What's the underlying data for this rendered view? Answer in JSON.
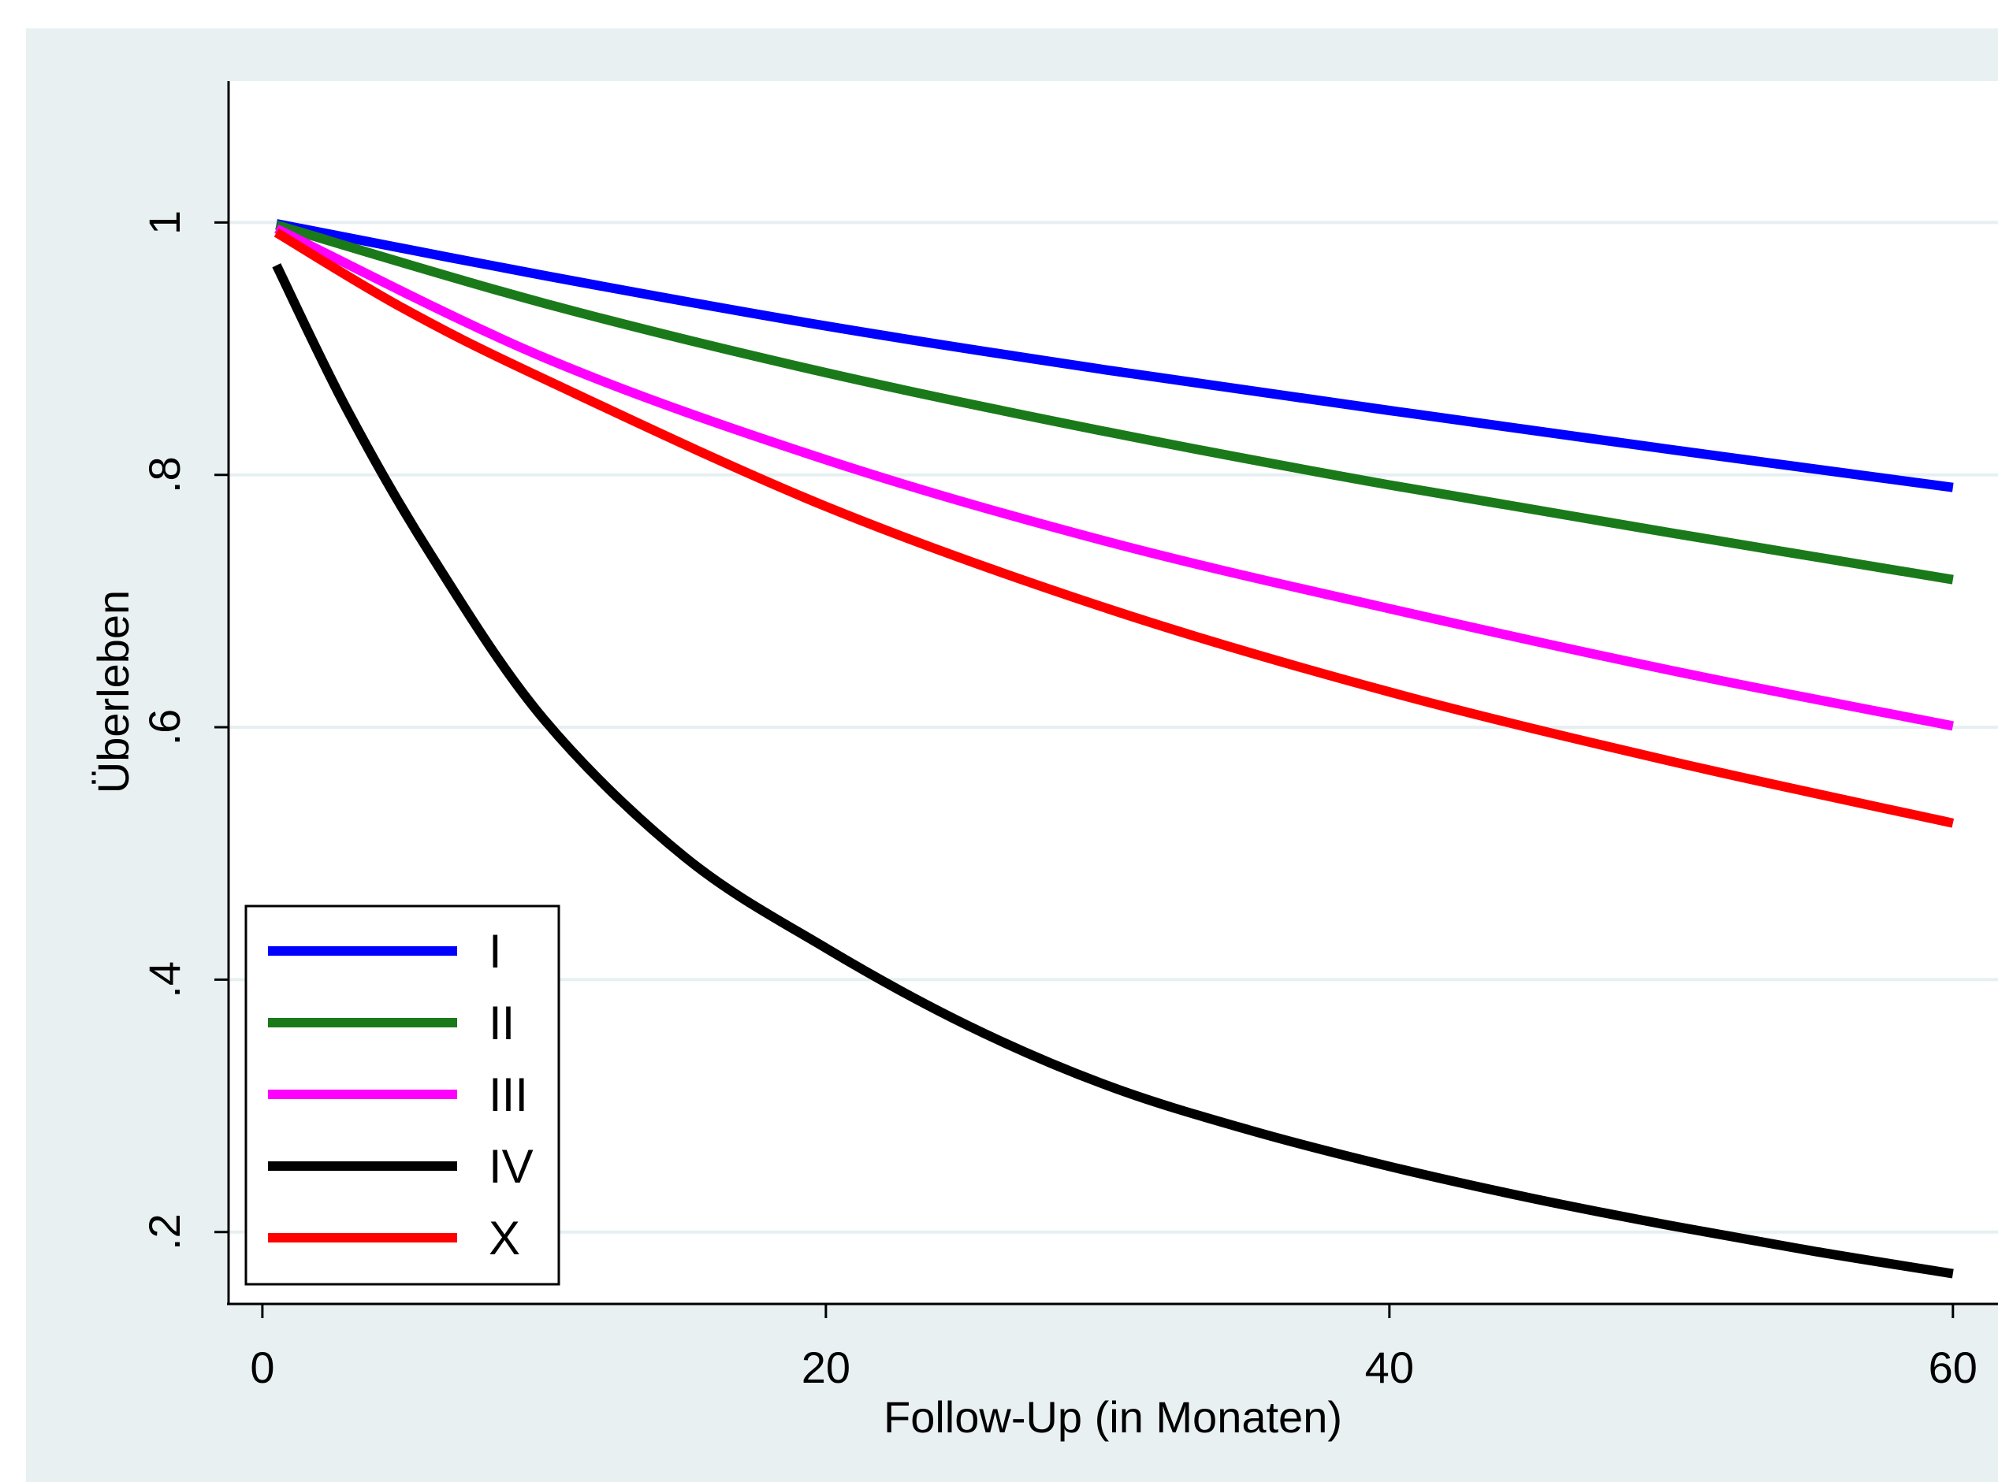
{
  "chart_data": {
    "type": "line",
    "title": "",
    "xlabel": "Follow-Up (in Monaten)",
    "ylabel": "Überleben",
    "xlim": [
      -1.2,
      61.6
    ],
    "ylim": [
      0.143,
      1.112
    ],
    "x_ticks": [
      {
        "value": 0,
        "label": "0"
      },
      {
        "value": 20,
        "label": "20"
      },
      {
        "value": 40,
        "label": "40"
      },
      {
        "value": 60,
        "label": "60"
      }
    ],
    "y_ticks": [
      {
        "value": 0.2,
        "label": ".2"
      },
      {
        "value": 0.4,
        "label": ".4"
      },
      {
        "value": 0.6,
        "label": ".6"
      },
      {
        "value": 0.8,
        "label": ".8"
      },
      {
        "value": 1.0,
        "label": "1"
      }
    ],
    "grid": true,
    "legend_position": "bottom-left",
    "series": [
      {
        "name": "I",
        "color": "#0000ff",
        "points": [
          [
            0.5,
            0.999
          ],
          [
            10,
            0.958
          ],
          [
            20,
            0.918
          ],
          [
            30,
            0.883
          ],
          [
            40,
            0.851
          ],
          [
            50,
            0.82
          ],
          [
            60,
            0.79
          ]
        ]
      },
      {
        "name": "II",
        "color": "#1a7a1a",
        "points": [
          [
            0.5,
            0.998
          ],
          [
            10,
            0.936
          ],
          [
            20,
            0.881
          ],
          [
            30,
            0.834
          ],
          [
            40,
            0.792
          ],
          [
            50,
            0.754
          ],
          [
            60,
            0.717
          ]
        ]
      },
      {
        "name": "III",
        "color": "#ff00ff",
        "points": [
          [
            0.5,
            0.995
          ],
          [
            10,
            0.893
          ],
          [
            20,
            0.812
          ],
          [
            30,
            0.747
          ],
          [
            40,
            0.694
          ],
          [
            50,
            0.645
          ],
          [
            60,
            0.601
          ]
        ]
      },
      {
        "name": "IV",
        "color": "#000000",
        "points": [
          [
            0.5,
            0.966
          ],
          [
            3,
            0.852
          ],
          [
            6,
            0.736
          ],
          [
            10,
            0.606
          ],
          [
            15,
            0.497
          ],
          [
            20,
            0.425
          ],
          [
            25,
            0.364
          ],
          [
            30,
            0.316
          ],
          [
            35,
            0.281
          ],
          [
            40,
            0.252
          ],
          [
            45,
            0.227
          ],
          [
            50,
            0.205
          ],
          [
            55,
            0.185
          ],
          [
            60,
            0.167
          ]
        ]
      },
      {
        "name": "X",
        "color": "#ff0000",
        "points": [
          [
            0.5,
            0.992
          ],
          [
            5,
            0.932
          ],
          [
            10,
            0.876
          ],
          [
            20,
            0.775
          ],
          [
            30,
            0.694
          ],
          [
            40,
            0.628
          ],
          [
            50,
            0.573
          ],
          [
            60,
            0.524
          ]
        ]
      }
    ]
  }
}
